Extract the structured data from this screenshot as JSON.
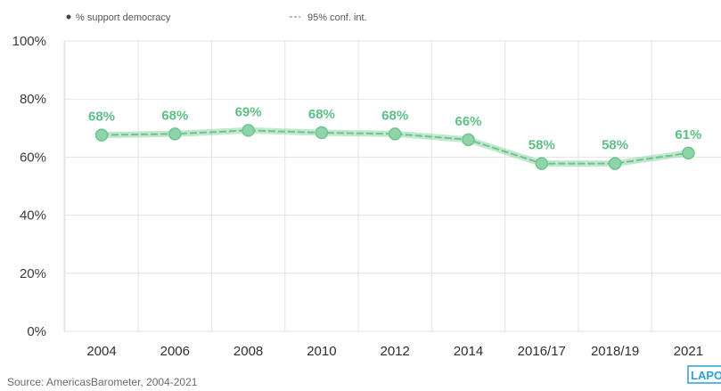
{
  "legend": {
    "items": [
      {
        "label": "% support democracy",
        "marker": "dot"
      },
      {
        "label": "95% conf. int.",
        "marker": "dashes"
      }
    ]
  },
  "source": "Source: AmericasBarometer, 2004-2021",
  "logo": "LAPOP",
  "colors": {
    "line": "#8fd4a8",
    "line_dark": "#6cc48e",
    "label": "#5dbf83",
    "grid": "#e3e3e3",
    "logo": "#2a9fd6"
  },
  "chart_data": {
    "type": "line",
    "title": "",
    "xlabel": "",
    "ylabel": "",
    "categories": [
      "2004",
      "2006",
      "2008",
      "2010",
      "2012",
      "2014",
      "2016/17",
      "2018/19",
      "2021"
    ],
    "series": [
      {
        "name": "% support democracy",
        "values": [
          67.6,
          68.0,
          69.2,
          68.4,
          68.0,
          66.0,
          57.8,
          57.8,
          61.4
        ],
        "labels": [
          "68%",
          "68%",
          "69%",
          "68%",
          "68%",
          "66%",
          "58%",
          "58%",
          "61%"
        ]
      }
    ],
    "ylim": [
      0,
      100
    ],
    "yticks": [
      0,
      20,
      40,
      60,
      80,
      100
    ],
    "ytick_labels": [
      "0%",
      "20%",
      "40%",
      "60%",
      "80%",
      "100%"
    ],
    "grid": true,
    "legend_position": "top-left"
  }
}
